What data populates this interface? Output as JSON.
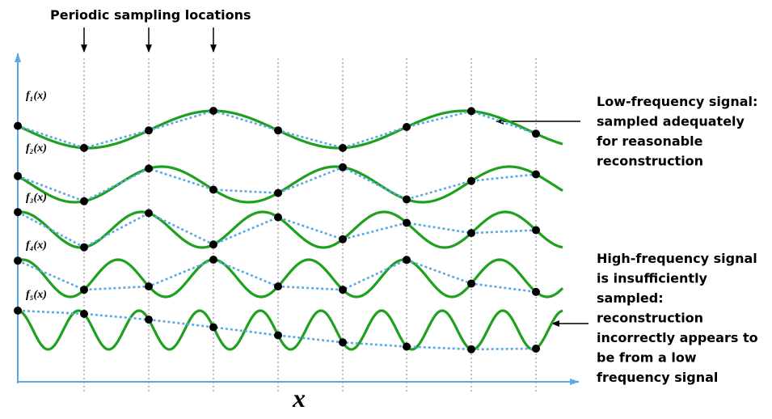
{
  "header": {
    "title": "Periodic sampling locations"
  },
  "signals": [
    {
      "label": "f₁(x)"
    },
    {
      "label": "f₂(x)"
    },
    {
      "label": "f₃(x)"
    },
    {
      "label": "f₄(x)"
    },
    {
      "label": "f₅(x)"
    }
  ],
  "axis": {
    "x_label": "x"
  },
  "annotations": [
    {
      "lines": [
        "Low-frequency signal:",
        "sampled adequately",
        "for reasonable",
        "reconstruction"
      ]
    },
    {
      "lines": [
        "High-frequency signal",
        "is insufficiently",
        "sampled:",
        "reconstruction",
        "incorrectly appears to",
        "be from a low",
        "frequency signal"
      ]
    }
  ]
}
